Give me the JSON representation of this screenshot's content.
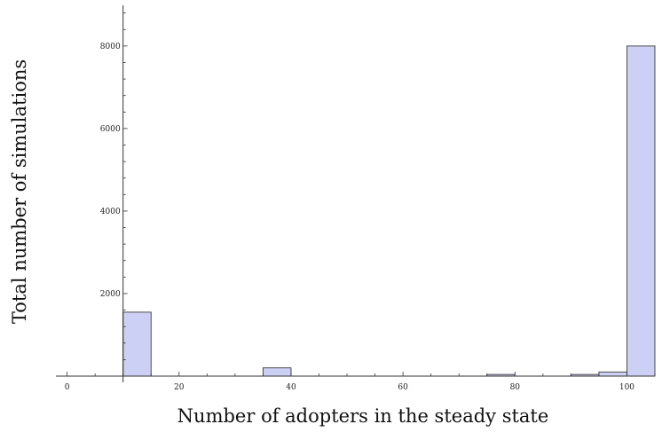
{
  "chart_data": {
    "type": "bar",
    "title": "",
    "xlabel": "Number of adopters in the steady state",
    "ylabel": "Total number of simulations",
    "xlim": [
      -2,
      105
    ],
    "ylim": [
      0,
      8900
    ],
    "x_axis_crosses_y_at": 10,
    "bin_width": 5,
    "bins": [
      {
        "x0": 10,
        "x1": 15,
        "count": 1550
      },
      {
        "x0": 35,
        "x1": 40,
        "count": 200
      },
      {
        "x0": 75,
        "x1": 80,
        "count": 40
      },
      {
        "x0": 90,
        "x1": 95,
        "count": 40
      },
      {
        "x0": 95,
        "x1": 100,
        "count": 100
      },
      {
        "x0": 100,
        "x1": 105,
        "count": 8000
      }
    ],
    "x_ticks": [
      0,
      20,
      40,
      60,
      80,
      100
    ],
    "y_ticks": [
      2000,
      4000,
      6000,
      8000
    ],
    "grid": false,
    "bar_color": "#ccd0f5",
    "bar_edge_color": "#3a3a3a"
  }
}
